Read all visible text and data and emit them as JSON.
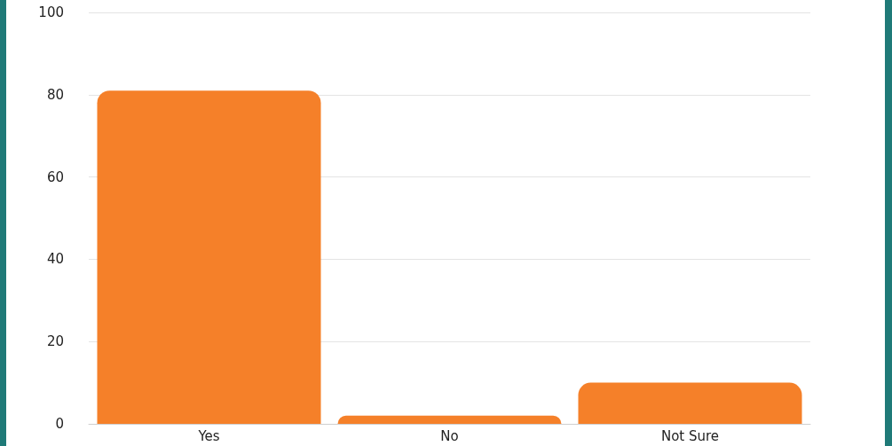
{
  "chart_data": {
    "type": "bar",
    "categories": [
      "Yes",
      "No",
      "Not Sure"
    ],
    "values": [
      81,
      2,
      10
    ],
    "color": "#f58029",
    "ylim": [
      0,
      100
    ],
    "yticks": [
      0,
      20,
      40,
      60,
      80,
      100
    ],
    "grid": "y"
  }
}
